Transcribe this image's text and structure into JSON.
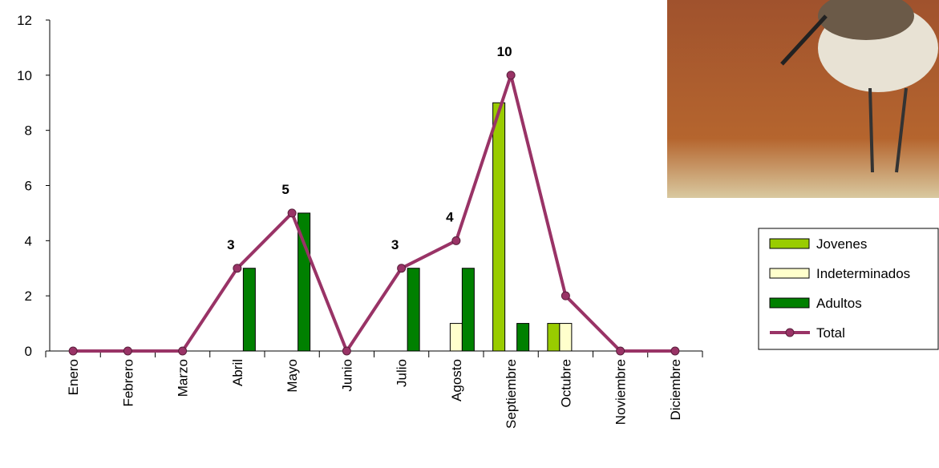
{
  "chart_data": {
    "type": "bar-line",
    "categories": [
      "Enero",
      "Febrero",
      "Marzo",
      "Abril",
      "Mayo",
      "Junio",
      "Julio",
      "Agosto",
      "Septiembre",
      "Octubre",
      "Noviembre",
      "Diciembre"
    ],
    "series": [
      {
        "name": "Jovenes",
        "type": "bar",
        "color": "#99cc00",
        "values": [
          0,
          0,
          0,
          0,
          0,
          0,
          0,
          0,
          9,
          1,
          0,
          0
        ]
      },
      {
        "name": "Indeterminados",
        "type": "bar",
        "color": "#ffffcc",
        "values": [
          0,
          0,
          0,
          0,
          0,
          0,
          0,
          1,
          0,
          1,
          0,
          0
        ]
      },
      {
        "name": "Adultos",
        "type": "bar",
        "color": "#008000",
        "values": [
          0,
          0,
          0,
          3,
          5,
          0,
          3,
          3,
          1,
          0,
          0,
          0
        ]
      },
      {
        "name": "Total",
        "type": "line",
        "color": "#993366",
        "values": [
          0,
          0,
          0,
          3,
          5,
          0,
          3,
          4,
          10,
          2,
          0,
          0
        ],
        "value_labels": [
          null,
          null,
          null,
          "3",
          "5",
          null,
          "3",
          "4",
          "10",
          null,
          null,
          null
        ]
      }
    ],
    "ylim": [
      0,
      12
    ],
    "yticks": [
      0,
      2,
      4,
      6,
      8,
      10,
      12
    ],
    "grid": false,
    "legend": "right"
  }
}
